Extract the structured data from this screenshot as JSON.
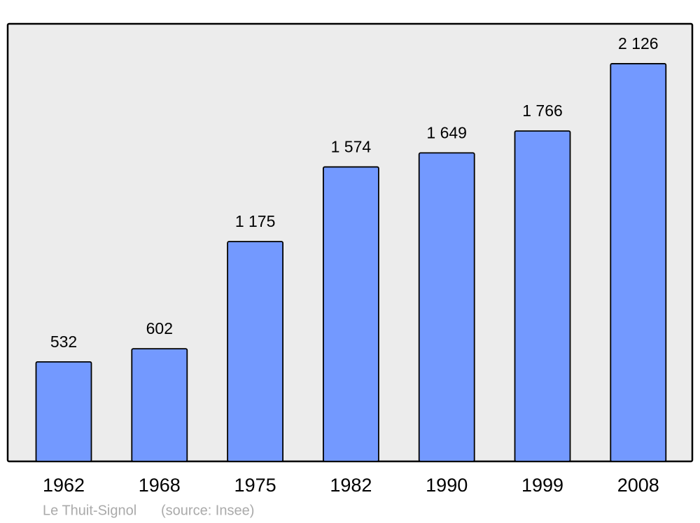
{
  "chart_data": {
    "type": "bar",
    "title": "Le Thuit-Signol",
    "source": "(source: Insee)",
    "categories": [
      "1962",
      "1968",
      "1975",
      "1982",
      "1990",
      "1999",
      "2008"
    ],
    "values": [
      532,
      602,
      1175,
      1574,
      1649,
      1766,
      2126
    ],
    "value_labels": [
      "532",
      "602",
      "1 175",
      "1 574",
      "1 649",
      "1 766",
      "2 126"
    ],
    "color": "#7399ff",
    "ylim": [
      0,
      2339
    ]
  }
}
